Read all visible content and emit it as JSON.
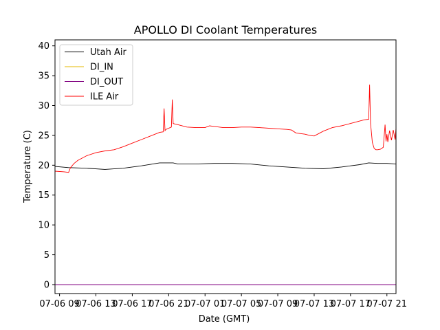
{
  "chart_data": {
    "type": "line",
    "title": "APOLLO DI Coolant Temperatures",
    "xlabel": "Date (GMT)",
    "ylabel": "Temperature (C)",
    "xlim": [
      8.5,
      46.0
    ],
    "ylim": [
      -1.5,
      41
    ],
    "yticks": [
      0,
      5,
      10,
      15,
      20,
      25,
      30,
      35,
      40
    ],
    "xticks": [
      {
        "pos": 9,
        "label": "07-06 09"
      },
      {
        "pos": 13,
        "label": "07-06 13"
      },
      {
        "pos": 17,
        "label": "07-06 17"
      },
      {
        "pos": 21,
        "label": "07-06 21"
      },
      {
        "pos": 25,
        "label": "07-07 01"
      },
      {
        "pos": 29,
        "label": "07-07 05"
      },
      {
        "pos": 33,
        "label": "07-07 09"
      },
      {
        "pos": 37,
        "label": "07-07 13"
      },
      {
        "pos": 41,
        "label": "07-07 17"
      },
      {
        "pos": 45,
        "label": "07-07 21"
      }
    ],
    "legend_position": "top-left",
    "series": [
      {
        "name": "Utah Air",
        "color": "#000000",
        "x": [
          8.5,
          10,
          12,
          14,
          16,
          18,
          20,
          21.5,
          22,
          24,
          26,
          28,
          30,
          32,
          34,
          36,
          38,
          40,
          42,
          43,
          44,
          45,
          46
        ],
        "y": [
          19.8,
          19.6,
          19.5,
          19.3,
          19.5,
          19.9,
          20.4,
          20.4,
          20.2,
          20.2,
          20.3,
          20.3,
          20.2,
          19.9,
          19.7,
          19.5,
          19.4,
          19.7,
          20.1,
          20.4,
          20.3,
          20.3,
          20.2
        ]
      },
      {
        "name": "DI_IN",
        "color": "#e6b800",
        "x": [
          8.5,
          46
        ],
        "y": [
          0,
          0
        ]
      },
      {
        "name": "DI_OUT",
        "color": "#800080",
        "x": [
          8.5,
          46
        ],
        "y": [
          0,
          0
        ]
      },
      {
        "name": "ILE Air",
        "color": "#ff0000",
        "x": [
          8.5,
          9.5,
          10.0,
          10.2,
          10.6,
          11,
          12,
          13,
          14,
          15,
          16,
          17,
          18,
          19,
          20,
          20.4,
          20.5,
          20.6,
          20.7,
          21.3,
          21.4,
          21.5,
          21.7,
          22,
          23,
          24,
          25,
          25.5,
          26,
          27,
          28,
          29,
          30,
          31,
          32,
          33,
          34,
          34.5,
          35,
          35.5,
          36,
          36.5,
          37,
          37.5,
          38,
          39,
          40,
          41,
          42,
          42.5,
          43,
          43.1,
          43.2,
          43.4,
          43.6,
          43.8,
          44,
          44.3,
          44.6,
          44.8,
          44.9,
          45.0,
          45.1,
          45.3,
          45.5,
          45.7,
          45.9,
          46.0
        ],
        "y": [
          19.0,
          18.9,
          18.8,
          19.6,
          20.3,
          20.8,
          21.6,
          22.1,
          22.4,
          22.6,
          23.1,
          23.7,
          24.3,
          24.9,
          25.5,
          25.6,
          29.5,
          25.8,
          26.0,
          26.4,
          31.0,
          27.0,
          26.9,
          26.8,
          26.4,
          26.3,
          26.3,
          26.6,
          26.5,
          26.3,
          26.3,
          26.4,
          26.4,
          26.3,
          26.2,
          26.1,
          26.0,
          25.9,
          25.4,
          25.3,
          25.2,
          25.0,
          24.9,
          25.3,
          25.7,
          26.3,
          26.6,
          27.0,
          27.4,
          27.6,
          27.7,
          33.5,
          27.0,
          23.8,
          22.8,
          22.6,
          22.6,
          22.7,
          23.0,
          26.8,
          24.0,
          25.2,
          23.9,
          25.8,
          24.2,
          25.9,
          24.3,
          26.2
        ]
      }
    ]
  }
}
